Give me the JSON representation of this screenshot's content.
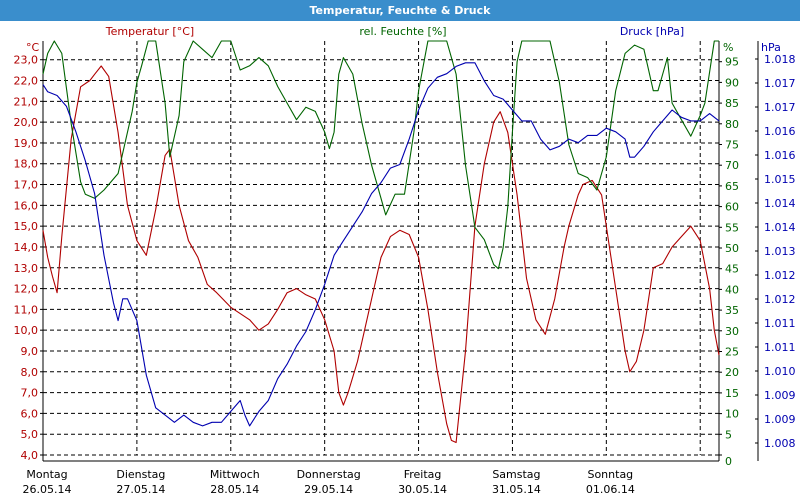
{
  "window": {
    "title": "Temperatur, Feuchte & Druck"
  },
  "colors": {
    "temperature": "#b00000",
    "humidity": "#006400",
    "pressure": "#0000b0",
    "axis": "#000000",
    "grid": "#000000",
    "titlebar": "#3a8ecc"
  },
  "chart_data": {
    "type": "line",
    "title": "Temperatur, Feuchte & Druck",
    "grid": true,
    "x": {
      "range": [
        0,
        7.2
      ],
      "day_labels": [
        {
          "day": "Montag",
          "date": "26.05.14"
        },
        {
          "day": "Dienstag",
          "date": "27.05.14"
        },
        {
          "day": "Mittwoch",
          "date": "28.05.14"
        },
        {
          "day": "Donnerstag",
          "date": "29.05.14"
        },
        {
          "day": "Freitag",
          "date": "30.05.14"
        },
        {
          "day": "Samstag",
          "date": "31.05.14"
        },
        {
          "day": "Sonntag",
          "date": "01.06.14"
        }
      ]
    },
    "axes": {
      "temperature": {
        "label": "Temperatur [°C]",
        "unit": "°C",
        "range": [
          4.0,
          23.9
        ],
        "ticks": [
          "4,0",
          "5,0",
          "6,0",
          "7,0",
          "8,0",
          "9,0",
          "10,0",
          "11,0",
          "12,0",
          "13,0",
          "14,0",
          "15,0",
          "16,0",
          "17,0",
          "18,0",
          "19,0",
          "20,0",
          "21,0",
          "22,0",
          "23,0"
        ]
      },
      "humidity": {
        "label": "rel. Feuchte [%]",
        "unit": "%",
        "range": [
          0,
          100
        ],
        "ticks": [
          "0",
          "5",
          "10",
          "15",
          "20",
          "25",
          "30",
          "35",
          "40",
          "45",
          "50",
          "55",
          "60",
          "65",
          "70",
          "75",
          "80",
          "85",
          "90",
          "95"
        ]
      },
      "pressure": {
        "label": "Druck [hPa]",
        "unit": "hPa",
        "range": [
          1007.1,
          1018.5
        ],
        "ticks": [
          "1.008",
          "1.009",
          "1.009",
          "1.010",
          "1.011",
          "1.011",
          "1.012",
          "1.012",
          "1.013",
          "1.014",
          "1.014",
          "1.015",
          "1.016",
          "1.016",
          "1.017",
          "1.017",
          "1.018"
        ]
      }
    },
    "series": [
      {
        "name": "Temperatur [°C]",
        "axis": "temperature",
        "color": "#b00000",
        "points": [
          [
            0.0,
            14.8
          ],
          [
            0.05,
            13.5
          ],
          [
            0.1,
            12.6
          ],
          [
            0.15,
            11.8
          ],
          [
            0.2,
            14.5
          ],
          [
            0.3,
            19.2
          ],
          [
            0.4,
            21.7
          ],
          [
            0.5,
            22.0
          ],
          [
            0.55,
            22.3
          ],
          [
            0.62,
            22.7
          ],
          [
            0.7,
            22.2
          ],
          [
            0.8,
            19.5
          ],
          [
            0.9,
            16.0
          ],
          [
            1.0,
            14.3
          ],
          [
            1.1,
            13.6
          ],
          [
            1.2,
            15.8
          ],
          [
            1.3,
            18.4
          ],
          [
            1.35,
            18.7
          ],
          [
            1.45,
            16.0
          ],
          [
            1.55,
            14.3
          ],
          [
            1.65,
            13.5
          ],
          [
            1.75,
            12.2
          ],
          [
            1.85,
            11.8
          ],
          [
            2.0,
            11.1
          ],
          [
            2.2,
            10.5
          ],
          [
            2.3,
            10.0
          ],
          [
            2.4,
            10.3
          ],
          [
            2.5,
            11.0
          ],
          [
            2.6,
            11.8
          ],
          [
            2.7,
            12.0
          ],
          [
            2.8,
            11.7
          ],
          [
            2.9,
            11.5
          ],
          [
            3.0,
            10.5
          ],
          [
            3.1,
            9.0
          ],
          [
            3.15,
            7.0
          ],
          [
            3.2,
            6.4
          ],
          [
            3.25,
            7.0
          ],
          [
            3.35,
            8.5
          ],
          [
            3.5,
            11.5
          ],
          [
            3.6,
            13.5
          ],
          [
            3.7,
            14.5
          ],
          [
            3.8,
            14.8
          ],
          [
            3.9,
            14.6
          ],
          [
            4.0,
            13.5
          ],
          [
            4.1,
            11.0
          ],
          [
            4.2,
            8.0
          ],
          [
            4.3,
            5.5
          ],
          [
            4.35,
            4.7
          ],
          [
            4.4,
            4.6
          ],
          [
            4.5,
            9.0
          ],
          [
            4.6,
            15.0
          ],
          [
            4.7,
            18.0
          ],
          [
            4.8,
            20.0
          ],
          [
            4.87,
            20.5
          ],
          [
            4.95,
            19.5
          ],
          [
            5.05,
            16.5
          ],
          [
            5.15,
            12.5
          ],
          [
            5.25,
            10.5
          ],
          [
            5.35,
            9.8
          ],
          [
            5.45,
            11.5
          ],
          [
            5.55,
            14.0
          ],
          [
            5.6,
            15.0
          ],
          [
            5.7,
            16.5
          ],
          [
            5.75,
            17.0
          ],
          [
            5.85,
            17.2
          ],
          [
            5.95,
            16.5
          ],
          [
            6.05,
            13.5
          ],
          [
            6.15,
            10.5
          ],
          [
            6.2,
            9.0
          ],
          [
            6.25,
            8.0
          ],
          [
            6.32,
            8.5
          ],
          [
            6.4,
            10.0
          ],
          [
            6.5,
            13.0
          ],
          [
            6.6,
            13.2
          ],
          [
            6.7,
            14.0
          ],
          [
            6.8,
            14.5
          ],
          [
            6.9,
            15.0
          ],
          [
            7.0,
            14.3
          ],
          [
            7.1,
            12.0
          ],
          [
            7.15,
            10.0
          ],
          [
            7.2,
            8.8
          ]
        ]
      },
      {
        "name": "rel. Feuchte [%]",
        "axis": "humidity",
        "color": "#006400",
        "points": [
          [
            0.0,
            92
          ],
          [
            0.05,
            97
          ],
          [
            0.12,
            100
          ],
          [
            0.2,
            97
          ],
          [
            0.3,
            80
          ],
          [
            0.4,
            66
          ],
          [
            0.45,
            63
          ],
          [
            0.55,
            62
          ],
          [
            0.65,
            64
          ],
          [
            0.8,
            68
          ],
          [
            0.95,
            83
          ],
          [
            1.0,
            90
          ],
          [
            1.05,
            94
          ],
          [
            1.12,
            100
          ],
          [
            1.2,
            100
          ],
          [
            1.3,
            85
          ],
          [
            1.35,
            72
          ],
          [
            1.45,
            82
          ],
          [
            1.5,
            95
          ],
          [
            1.6,
            100
          ],
          [
            1.7,
            98
          ],
          [
            1.8,
            96
          ],
          [
            1.9,
            100
          ],
          [
            2.0,
            100
          ],
          [
            2.1,
            93
          ],
          [
            2.2,
            94
          ],
          [
            2.3,
            96
          ],
          [
            2.4,
            94
          ],
          [
            2.5,
            89
          ],
          [
            2.6,
            85
          ],
          [
            2.7,
            81
          ],
          [
            2.8,
            84
          ],
          [
            2.9,
            83
          ],
          [
            3.0,
            78
          ],
          [
            3.05,
            74
          ],
          [
            3.1,
            78
          ],
          [
            3.15,
            92
          ],
          [
            3.2,
            96
          ],
          [
            3.3,
            92
          ],
          [
            3.4,
            80
          ],
          [
            3.5,
            70
          ],
          [
            3.6,
            62
          ],
          [
            3.65,
            58
          ],
          [
            3.75,
            63
          ],
          [
            3.85,
            63
          ],
          [
            3.95,
            78
          ],
          [
            4.0,
            88
          ],
          [
            4.1,
            100
          ],
          [
            4.2,
            100
          ],
          [
            4.3,
            100
          ],
          [
            4.4,
            92
          ],
          [
            4.5,
            70
          ],
          [
            4.6,
            55
          ],
          [
            4.7,
            52
          ],
          [
            4.8,
            46
          ],
          [
            4.85,
            45
          ],
          [
            4.9,
            50
          ],
          [
            4.95,
            60
          ],
          [
            5.0,
            78
          ],
          [
            5.05,
            95
          ],
          [
            5.1,
            100
          ],
          [
            5.2,
            100
          ],
          [
            5.4,
            100
          ],
          [
            5.5,
            90
          ],
          [
            5.6,
            75
          ],
          [
            5.7,
            68
          ],
          [
            5.8,
            67
          ],
          [
            5.9,
            64
          ],
          [
            6.0,
            72
          ],
          [
            6.1,
            88
          ],
          [
            6.2,
            97
          ],
          [
            6.3,
            99
          ],
          [
            6.4,
            98
          ],
          [
            6.5,
            88
          ],
          [
            6.55,
            88
          ],
          [
            6.6,
            92
          ],
          [
            6.65,
            96
          ],
          [
            6.7,
            85
          ],
          [
            6.8,
            81
          ],
          [
            6.9,
            77
          ],
          [
            7.0,
            82
          ],
          [
            7.05,
            85
          ],
          [
            7.15,
            100
          ],
          [
            7.2,
            100
          ]
        ]
      },
      {
        "name": "Druck [hPa]",
        "axis": "pressure",
        "color": "#0000b0",
        "points": [
          [
            0.0,
            1017.3
          ],
          [
            0.05,
            1017.1
          ],
          [
            0.15,
            1017.0
          ],
          [
            0.25,
            1016.7
          ],
          [
            0.35,
            1016.0
          ],
          [
            0.45,
            1015.2
          ],
          [
            0.55,
            1014.3
          ],
          [
            0.65,
            1012.6
          ],
          [
            0.75,
            1011.3
          ],
          [
            0.8,
            1010.8
          ],
          [
            0.85,
            1011.4
          ],
          [
            0.9,
            1011.4
          ],
          [
            1.0,
            1010.8
          ],
          [
            1.1,
            1009.3
          ],
          [
            1.2,
            1008.4
          ],
          [
            1.3,
            1008.2
          ],
          [
            1.4,
            1008.0
          ],
          [
            1.5,
            1008.2
          ],
          [
            1.6,
            1008.0
          ],
          [
            1.7,
            1007.9
          ],
          [
            1.8,
            1008.0
          ],
          [
            1.9,
            1008.0
          ],
          [
            2.0,
            1008.3
          ],
          [
            2.1,
            1008.6
          ],
          [
            2.15,
            1008.2
          ],
          [
            2.2,
            1007.9
          ],
          [
            2.3,
            1008.3
          ],
          [
            2.4,
            1008.6
          ],
          [
            2.5,
            1009.2
          ],
          [
            2.6,
            1009.6
          ],
          [
            2.7,
            1010.1
          ],
          [
            2.8,
            1010.5
          ],
          [
            2.9,
            1011.1
          ],
          [
            3.0,
            1011.8
          ],
          [
            3.1,
            1012.6
          ],
          [
            3.2,
            1013.0
          ],
          [
            3.3,
            1013.4
          ],
          [
            3.4,
            1013.8
          ],
          [
            3.5,
            1014.3
          ],
          [
            3.6,
            1014.6
          ],
          [
            3.7,
            1015.0
          ],
          [
            3.8,
            1015.1
          ],
          [
            3.9,
            1015.8
          ],
          [
            4.0,
            1016.6
          ],
          [
            4.1,
            1017.2
          ],
          [
            4.2,
            1017.5
          ],
          [
            4.3,
            1017.6
          ],
          [
            4.4,
            1017.8
          ],
          [
            4.5,
            1017.9
          ],
          [
            4.6,
            1017.9
          ],
          [
            4.7,
            1017.4
          ],
          [
            4.8,
            1017.0
          ],
          [
            4.9,
            1016.9
          ],
          [
            5.0,
            1016.6
          ],
          [
            5.1,
            1016.3
          ],
          [
            5.2,
            1016.3
          ],
          [
            5.3,
            1015.8
          ],
          [
            5.4,
            1015.5
          ],
          [
            5.5,
            1015.6
          ],
          [
            5.6,
            1015.8
          ],
          [
            5.7,
            1015.7
          ],
          [
            5.8,
            1015.9
          ],
          [
            5.9,
            1015.9
          ],
          [
            6.0,
            1016.1
          ],
          [
            6.1,
            1016.0
          ],
          [
            6.2,
            1015.8
          ],
          [
            6.25,
            1015.3
          ],
          [
            6.3,
            1015.3
          ],
          [
            6.4,
            1015.6
          ],
          [
            6.5,
            1016.0
          ],
          [
            6.6,
            1016.3
          ],
          [
            6.7,
            1016.6
          ],
          [
            6.8,
            1016.4
          ],
          [
            6.9,
            1016.3
          ],
          [
            7.0,
            1016.3
          ],
          [
            7.1,
            1016.5
          ],
          [
            7.2,
            1016.3
          ]
        ]
      }
    ]
  }
}
